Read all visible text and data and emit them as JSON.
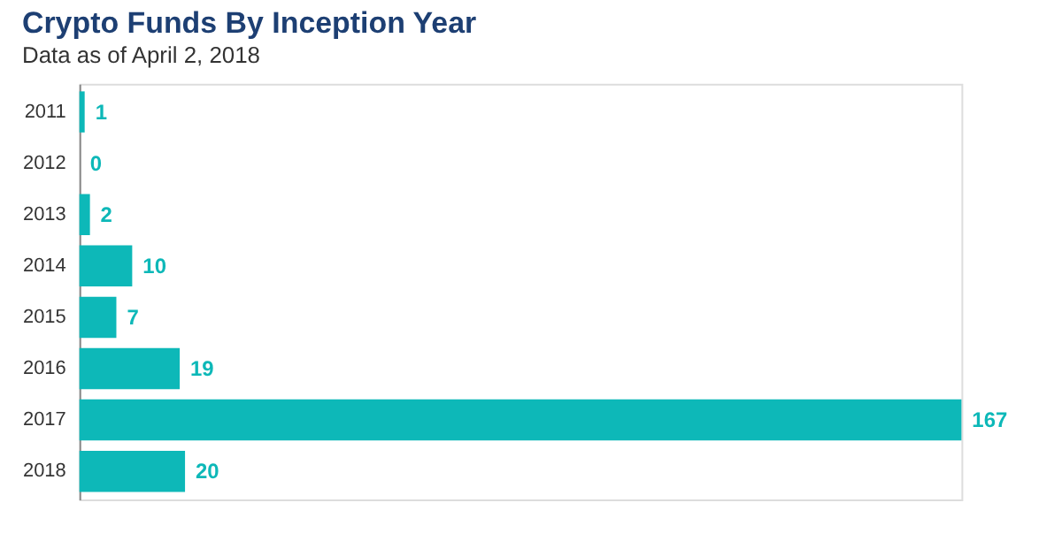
{
  "chart_data": {
    "type": "bar",
    "orientation": "horizontal",
    "title": "Crypto Funds By Inception Year",
    "subtitle": "Data as of April 2, 2018",
    "categories": [
      "2011",
      "2012",
      "2013",
      "2014",
      "2015",
      "2016",
      "2017",
      "2018"
    ],
    "values": [
      1,
      0,
      2,
      10,
      7,
      19,
      167,
      20
    ],
    "color": "#0db8b8",
    "data_labels": true
  }
}
